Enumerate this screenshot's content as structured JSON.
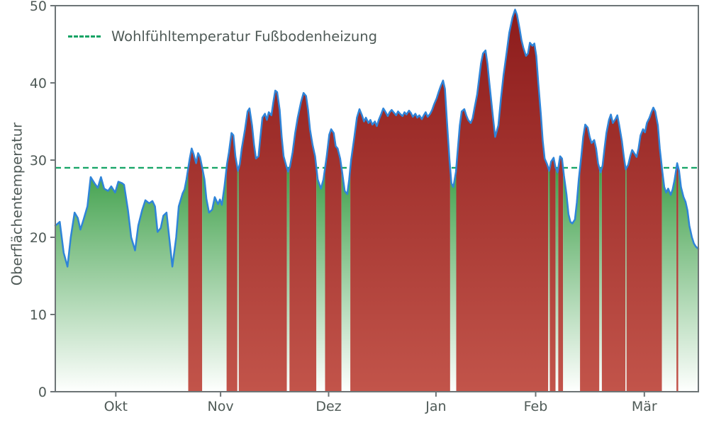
{
  "colors": {
    "line": "#2f84d8",
    "threshold": "#12a364",
    "red_top": "#8c1b1b",
    "red_bottom": "#c2544a",
    "green_top": "#3fa04a",
    "green_bottom": "#fefffe",
    "axis": "#6d7476",
    "text": "#4f5a57"
  },
  "chart_data": {
    "type": "area",
    "title": "",
    "xlabel": "",
    "ylabel": "Oberflächentemperatur",
    "ylim": [
      0,
      50
    ],
    "yticks": [
      0,
      10,
      20,
      30,
      40,
      50
    ],
    "xticks": [
      {
        "label": "Okt",
        "pos": 0.094
      },
      {
        "label": "Nov",
        "pos": 0.257
      },
      {
        "label": "Dez",
        "pos": 0.425
      },
      {
        "label": "Jan",
        "pos": 0.592
      },
      {
        "label": "Feb",
        "pos": 0.747
      },
      {
        "label": "Mär",
        "pos": 0.916
      }
    ],
    "threshold": {
      "value": 29,
      "label": "Wohlfühltemperatur Fußbodenheizung"
    },
    "legend_position": "upper left",
    "grid": false,
    "points": [
      [
        0.0,
        21.5
      ],
      [
        0.007,
        22
      ],
      [
        0.013,
        18
      ],
      [
        0.019,
        16.2
      ],
      [
        0.024,
        20
      ],
      [
        0.03,
        23.2
      ],
      [
        0.035,
        22.5
      ],
      [
        0.039,
        21
      ],
      [
        0.044,
        22.3
      ],
      [
        0.05,
        24
      ],
      [
        0.055,
        27.8
      ],
      [
        0.061,
        27
      ],
      [
        0.066,
        26.4
      ],
      [
        0.071,
        27.8
      ],
      [
        0.076,
        26.3
      ],
      [
        0.082,
        26
      ],
      [
        0.087,
        26.6
      ],
      [
        0.093,
        25.8
      ],
      [
        0.098,
        27.2
      ],
      [
        0.104,
        27
      ],
      [
        0.107,
        26.8
      ],
      [
        0.113,
        23.5
      ],
      [
        0.118,
        20
      ],
      [
        0.124,
        18.3
      ],
      [
        0.129,
        21.5
      ],
      [
        0.135,
        23.5
      ],
      [
        0.14,
        24.8
      ],
      [
        0.146,
        24.4
      ],
      [
        0.151,
        24.7
      ],
      [
        0.155,
        24
      ],
      [
        0.159,
        20.7
      ],
      [
        0.164,
        21.2
      ],
      [
        0.168,
        22.8
      ],
      [
        0.173,
        23.2
      ],
      [
        0.179,
        18.5
      ],
      [
        0.182,
        16.2
      ],
      [
        0.188,
        20
      ],
      [
        0.192,
        24
      ],
      [
        0.198,
        25.7
      ],
      [
        0.201,
        26.2
      ],
      [
        0.204,
        27.5
      ],
      [
        0.209,
        30.2
      ],
      [
        0.212,
        31.5
      ],
      [
        0.215,
        30.8
      ],
      [
        0.219,
        29.6
      ],
      [
        0.222,
        30.9
      ],
      [
        0.225,
        30.4
      ],
      [
        0.228,
        29.2
      ],
      [
        0.232,
        27.5
      ],
      [
        0.235,
        25
      ],
      [
        0.239,
        23.2
      ],
      [
        0.244,
        23.6
      ],
      [
        0.248,
        25.2
      ],
      [
        0.253,
        24.3
      ],
      [
        0.256,
        24.9
      ],
      [
        0.259,
        24.2
      ],
      [
        0.263,
        26.5
      ],
      [
        0.267,
        29.5
      ],
      [
        0.27,
        31
      ],
      [
        0.274,
        33.5
      ],
      [
        0.277,
        33.2
      ],
      [
        0.28,
        30.5
      ],
      [
        0.284,
        28.6
      ],
      [
        0.287,
        29.5
      ],
      [
        0.29,
        31.5
      ],
      [
        0.295,
        34
      ],
      [
        0.299,
        36.3
      ],
      [
        0.302,
        36.7
      ],
      [
        0.306,
        34.5
      ],
      [
        0.309,
        32
      ],
      [
        0.312,
        30.2
      ],
      [
        0.316,
        30.5
      ],
      [
        0.319,
        33
      ],
      [
        0.322,
        35.5
      ],
      [
        0.326,
        36
      ],
      [
        0.329,
        35.2
      ],
      [
        0.332,
        36.2
      ],
      [
        0.336,
        35.8
      ],
      [
        0.339,
        37.5
      ],
      [
        0.342,
        39
      ],
      [
        0.345,
        38.8
      ],
      [
        0.349,
        36.5
      ],
      [
        0.352,
        33
      ],
      [
        0.355,
        30.5
      ],
      [
        0.359,
        29.3
      ],
      [
        0.362,
        28.5
      ],
      [
        0.365,
        29.2
      ],
      [
        0.369,
        31
      ],
      [
        0.373,
        33.5
      ],
      [
        0.377,
        35.5
      ],
      [
        0.382,
        37.5
      ],
      [
        0.386,
        38.7
      ],
      [
        0.39,
        38.3
      ],
      [
        0.393,
        36.5
      ],
      [
        0.396,
        34
      ],
      [
        0.4,
        32
      ],
      [
        0.404,
        30.5
      ],
      [
        0.408,
        27.5
      ],
      [
        0.413,
        26.3
      ],
      [
        0.417,
        27.5
      ],
      [
        0.422,
        30.5
      ],
      [
        0.426,
        33.3
      ],
      [
        0.429,
        34
      ],
      [
        0.433,
        33.5
      ],
      [
        0.436,
        31.8
      ],
      [
        0.439,
        31.5
      ],
      [
        0.443,
        30.2
      ],
      [
        0.446,
        28.5
      ],
      [
        0.45,
        26
      ],
      [
        0.454,
        25.6
      ],
      [
        0.457,
        27.5
      ],
      [
        0.46,
        30
      ],
      [
        0.465,
        33
      ],
      [
        0.469,
        35.5
      ],
      [
        0.473,
        36.6
      ],
      [
        0.477,
        35.8
      ],
      [
        0.48,
        35
      ],
      [
        0.483,
        35.5
      ],
      [
        0.487,
        34.8
      ],
      [
        0.49,
        35.2
      ],
      [
        0.493,
        34.6
      ],
      [
        0.497,
        35
      ],
      [
        0.5,
        34.4
      ],
      [
        0.503,
        35.2
      ],
      [
        0.507,
        36
      ],
      [
        0.51,
        36.7
      ],
      [
        0.513,
        36.3
      ],
      [
        0.517,
        35.7
      ],
      [
        0.52,
        36.2
      ],
      [
        0.523,
        36.5
      ],
      [
        0.526,
        36.2
      ],
      [
        0.53,
        35.8
      ],
      [
        0.533,
        36.3
      ],
      [
        0.536,
        36
      ],
      [
        0.54,
        35.7
      ],
      [
        0.543,
        36.2
      ],
      [
        0.546,
        35.9
      ],
      [
        0.55,
        36.4
      ],
      [
        0.553,
        36.1
      ],
      [
        0.556,
        35.6
      ],
      [
        0.56,
        36
      ],
      [
        0.563,
        35.5
      ],
      [
        0.566,
        35.8
      ],
      [
        0.57,
        35.3
      ],
      [
        0.573,
        35.8
      ],
      [
        0.576,
        36.2
      ],
      [
        0.579,
        35.6
      ],
      [
        0.583,
        36
      ],
      [
        0.586,
        36.5
      ],
      [
        0.589,
        37.2
      ],
      [
        0.593,
        38
      ],
      [
        0.596,
        38.8
      ],
      [
        0.599,
        39.5
      ],
      [
        0.603,
        40.3
      ],
      [
        0.606,
        39.2
      ],
      [
        0.609,
        35
      ],
      [
        0.613,
        30
      ],
      [
        0.616,
        27
      ],
      [
        0.619,
        26.5
      ],
      [
        0.623,
        28.5
      ],
      [
        0.626,
        31.5
      ],
      [
        0.629,
        34.5
      ],
      [
        0.632,
        36.3
      ],
      [
        0.636,
        36.6
      ],
      [
        0.639,
        35.8
      ],
      [
        0.642,
        35.2
      ],
      [
        0.646,
        34.8
      ],
      [
        0.649,
        35.4
      ],
      [
        0.652,
        36.8
      ],
      [
        0.656,
        38.5
      ],
      [
        0.659,
        40.5
      ],
      [
        0.662,
        42.5
      ],
      [
        0.665,
        43.8
      ],
      [
        0.669,
        44.2
      ],
      [
        0.672,
        42.5
      ],
      [
        0.675,
        40
      ],
      [
        0.68,
        36
      ],
      [
        0.684,
        33
      ],
      [
        0.689,
        34.5
      ],
      [
        0.693,
        38
      ],
      [
        0.697,
        41
      ],
      [
        0.702,
        44
      ],
      [
        0.706,
        46.5
      ],
      [
        0.711,
        48.5
      ],
      [
        0.715,
        49.5
      ],
      [
        0.718,
        48.8
      ],
      [
        0.722,
        47
      ],
      [
        0.725,
        45.5
      ],
      [
        0.728,
        44.5
      ],
      [
        0.732,
        43.5
      ],
      [
        0.735,
        43.8
      ],
      [
        0.738,
        45.2
      ],
      [
        0.742,
        44.8
      ],
      [
        0.745,
        45.1
      ],
      [
        0.748,
        43.5
      ],
      [
        0.751,
        40
      ],
      [
        0.755,
        36
      ],
      [
        0.758,
        32.5
      ],
      [
        0.761,
        30.2
      ],
      [
        0.765,
        29.4
      ],
      [
        0.768,
        28.6
      ],
      [
        0.771,
        29.8
      ],
      [
        0.775,
        30.3
      ],
      [
        0.778,
        29
      ],
      [
        0.781,
        28.4
      ],
      [
        0.785,
        30.5
      ],
      [
        0.788,
        30.2
      ],
      [
        0.791,
        28
      ],
      [
        0.795,
        25.5
      ],
      [
        0.798,
        23
      ],
      [
        0.801,
        22
      ],
      [
        0.804,
        21.8
      ],
      [
        0.808,
        22.3
      ],
      [
        0.811,
        24.5
      ],
      [
        0.814,
        27.5
      ],
      [
        0.818,
        30.5
      ],
      [
        0.821,
        33
      ],
      [
        0.824,
        34.6
      ],
      [
        0.828,
        34.2
      ],
      [
        0.831,
        33
      ],
      [
        0.834,
        32.2
      ],
      [
        0.838,
        32.6
      ],
      [
        0.841,
        31.5
      ],
      [
        0.844,
        29.6
      ],
      [
        0.848,
        28.4
      ],
      [
        0.851,
        29.3
      ],
      [
        0.854,
        31.5
      ],
      [
        0.857,
        33.5
      ],
      [
        0.861,
        35.2
      ],
      [
        0.864,
        35.9
      ],
      [
        0.867,
        34.8
      ],
      [
        0.871,
        35.3
      ],
      [
        0.874,
        35.8
      ],
      [
        0.877,
        34.5
      ],
      [
        0.881,
        32.5
      ],
      [
        0.884,
        30.5
      ],
      [
        0.887,
        28.8
      ],
      [
        0.891,
        29.4
      ],
      [
        0.894,
        30.5
      ],
      [
        0.897,
        31.3
      ],
      [
        0.901,
        30.8
      ],
      [
        0.904,
        30.4
      ],
      [
        0.907,
        31.5
      ],
      [
        0.91,
        33.2
      ],
      [
        0.914,
        34
      ],
      [
        0.917,
        33.6
      ],
      [
        0.92,
        34.8
      ],
      [
        0.924,
        35.5
      ],
      [
        0.927,
        36.2
      ],
      [
        0.93,
        36.8
      ],
      [
        0.933,
        36.3
      ],
      [
        0.937,
        34.5
      ],
      [
        0.94,
        31.5
      ],
      [
        0.944,
        28.5
      ],
      [
        0.947,
        26.5
      ],
      [
        0.95,
        25.8
      ],
      [
        0.953,
        26.3
      ],
      [
        0.957,
        25.5
      ],
      [
        0.96,
        26.2
      ],
      [
        0.963,
        27.4
      ],
      [
        0.967,
        29.6
      ],
      [
        0.97,
        28.6
      ],
      [
        0.973,
        26.5
      ],
      [
        0.977,
        25.2
      ],
      [
        0.98,
        24.6
      ],
      [
        0.983,
        23.5
      ],
      [
        0.986,
        21.5
      ],
      [
        0.99,
        20
      ],
      [
        0.993,
        19.2
      ],
      [
        0.996,
        18.8
      ],
      [
        1.0,
        18.5
      ]
    ]
  }
}
